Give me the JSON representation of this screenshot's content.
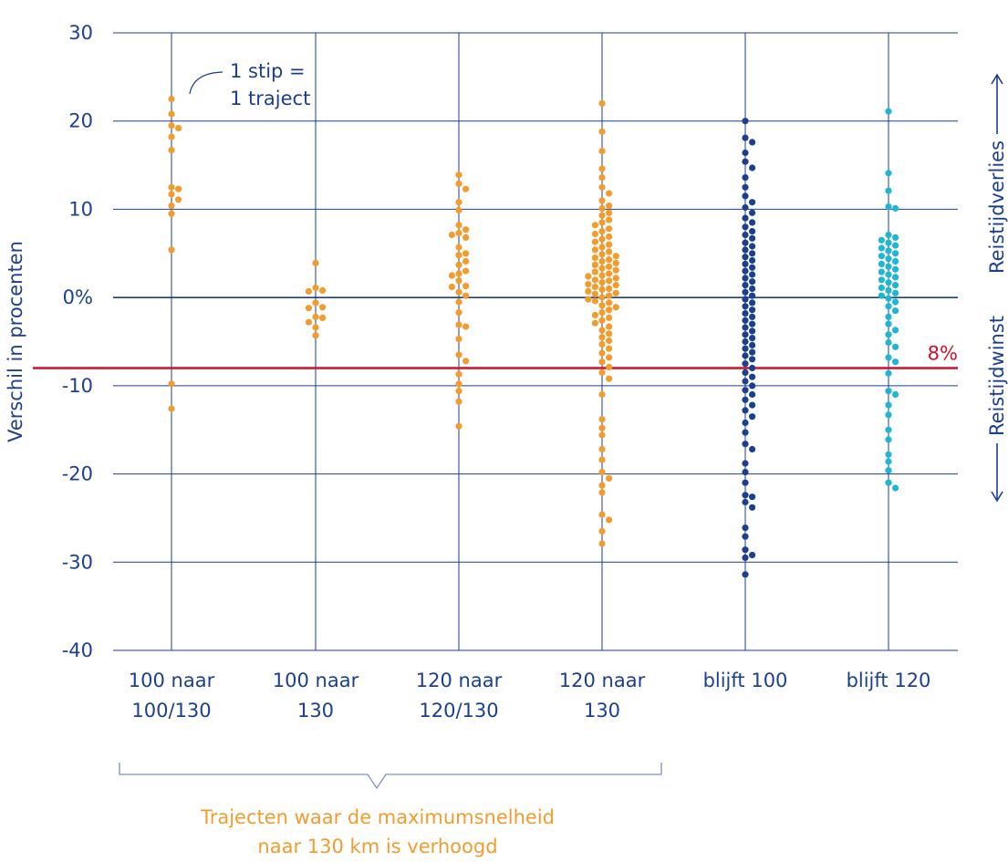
{
  "chart_data": {
    "type": "scatter",
    "subtype": "beeswarm",
    "ylabel": "Verschil in procenten",
    "ylim": [
      -40,
      30
    ],
    "yticks": [
      "30",
      "20",
      "10",
      "0%",
      "-10",
      "-20",
      "-30",
      "-40"
    ],
    "yticks_values": [
      30,
      20,
      10,
      0,
      -10,
      -20,
      -30,
      -40
    ],
    "grid": true,
    "categories": [
      {
        "line1": "100 naar",
        "line2": "100/130"
      },
      {
        "line1": "100 naar",
        "line2": "130"
      },
      {
        "line1": "120 naar",
        "line2": "120/130"
      },
      {
        "line1": "120 naar",
        "line2": "130"
      },
      {
        "line1": "blijft 100",
        "line2": ""
      },
      {
        "line1": "blijft 120",
        "line2": ""
      }
    ],
    "series": [
      {
        "category": "100 naar 100/130",
        "color": "#f39c2d",
        "values": [
          22.5,
          20.8,
          19.5,
          19.2,
          18.2,
          16.7,
          12.5,
          12.3,
          11.7,
          11.1,
          10.4,
          9.5,
          5.4,
          -9.8,
          -12.6
        ]
      },
      {
        "category": "100 naar 130",
        "color": "#f39c2d",
        "values": [
          3.9,
          1.1,
          0.8,
          0.7,
          -0.6,
          -1.1,
          -1.2,
          -2.2,
          -2.3,
          -2.8,
          -3.4,
          -4.3
        ]
      },
      {
        "category": "120 naar 120/130",
        "color": "#f39c2d",
        "values": [
          13.9,
          12.3,
          12.9,
          10.8,
          9.9,
          8.2,
          7.7,
          7.3,
          7.1,
          6.8,
          5.7,
          5.0,
          4.8,
          4.1,
          3.7,
          3.0,
          2.7,
          2.5,
          1.9,
          1.3,
          1.2,
          0.6,
          0.2,
          -0.5,
          -1.7,
          -3.1,
          -3.3,
          -4.7,
          -6.5,
          -7.2,
          -8.7,
          -9.8,
          -10.6,
          -11.8,
          -14.6
        ]
      },
      {
        "category": "120 naar 130",
        "color": "#f39c2d",
        "values": [
          22.0,
          18.8,
          16.6,
          14.6,
          13.6,
          12.5,
          11.8,
          11.0,
          10.4,
          10.1,
          9.6,
          9.3,
          8.8,
          8.5,
          8.2,
          7.8,
          7.5,
          7.2,
          6.9,
          6.6,
          6.3,
          6.0,
          5.7,
          5.4,
          5.2,
          4.9,
          4.7,
          4.5,
          4.3,
          4.1,
          3.9,
          3.7,
          3.5,
          3.3,
          3.1,
          2.9,
          2.7,
          2.5,
          2.4,
          2.2,
          2.0,
          1.9,
          1.7,
          1.5,
          1.4,
          1.2,
          1.0,
          0.9,
          0.7,
          0.5,
          0.4,
          0.2,
          0.0,
          -0.2,
          -0.4,
          -0.6,
          -0.9,
          -1.1,
          -1.4,
          -1.7,
          -2.0,
          -2.3,
          -2.6,
          -2.9,
          -3.3,
          -3.7,
          -4.1,
          -4.5,
          -4.9,
          -5.3,
          -5.8,
          -6.3,
          -6.8,
          -7.3,
          -7.9,
          -8.5,
          -9.2,
          -11.0,
          -13.8,
          -14.8,
          -15.6,
          -17.2,
          -18.4,
          -19.8,
          -20.5,
          -21.3,
          -22.1,
          -24.6,
          -25.2,
          -26.5,
          -27.9
        ]
      },
      {
        "category": "blijft 100",
        "color": "#1c3f8f",
        "values": [
          20.0,
          18.1,
          17.6,
          16.4,
          15.4,
          14.7,
          13.6,
          12.5,
          11.5,
          10.8,
          10.2,
          9.6,
          9.0,
          8.5,
          8.0,
          7.5,
          7.1,
          6.7,
          6.2,
          5.8,
          5.4,
          5.0,
          4.6,
          4.2,
          3.8,
          3.4,
          3.0,
          2.6,
          2.2,
          1.8,
          1.4,
          1.0,
          0.6,
          0.2,
          -0.2,
          -0.6,
          -1.0,
          -1.4,
          -1.8,
          -2.2,
          -2.6,
          -3.0,
          -3.4,
          -3.8,
          -4.2,
          -4.6,
          -5.0,
          -5.4,
          -5.8,
          -6.2,
          -6.6,
          -7.0,
          -7.5,
          -8.0,
          -8.5,
          -9.0,
          -9.5,
          -10.0,
          -10.5,
          -11.0,
          -11.6,
          -12.2,
          -12.8,
          -13.5,
          -14.2,
          -15.3,
          -16.6,
          -17.2,
          -18.8,
          -19.8,
          -21.0,
          -22.4,
          -22.6,
          -23.2,
          -23.8,
          -26.1,
          -27.1,
          -28.6,
          -29.2,
          -29.5,
          -31.4
        ]
      },
      {
        "category": "blijft 120",
        "color": "#1fb6d6",
        "values": [
          21.1,
          14.1,
          12.1,
          10.3,
          10.1,
          7.1,
          6.8,
          6.5,
          6.2,
          5.9,
          5.6,
          5.3,
          5.0,
          4.7,
          4.4,
          4.1,
          3.8,
          3.5,
          3.2,
          2.9,
          2.6,
          2.3,
          2.0,
          1.7,
          1.4,
          1.1,
          0.8,
          0.5,
          0.2,
          -0.1,
          -0.5,
          -1.0,
          -1.5,
          -2.2,
          -3.0,
          -3.7,
          -4.2,
          -5.1,
          -5.6,
          -6.8,
          -7.3,
          -8.6,
          -10.6,
          -11.0,
          -12.2,
          -13.3,
          -15.0,
          -16.1,
          -17.8,
          -18.6,
          -19.6,
          -21.0,
          -21.6
        ]
      }
    ],
    "reference_lines": [
      {
        "value": 0,
        "color": "#1c3f8f"
      },
      {
        "value": -8,
        "label": "8%",
        "color": "#d0112b"
      }
    ],
    "annotations": {
      "dot_note_line1": "1 stip =",
      "dot_note_line2": "1 traject",
      "right_upper": "Reistijdverlies",
      "right_lower": "Reistijdwinst",
      "bracket_line1": "Trajecten waar de maximumsnelheid",
      "bracket_line2": "naar 130 km is verhoogd"
    },
    "colors": {
      "axis_text": "#1c3f8f",
      "grid": "#1c3f8f",
      "orange": "#f39c2d",
      "red": "#d0112b",
      "bracket": "#7d93b6"
    }
  }
}
